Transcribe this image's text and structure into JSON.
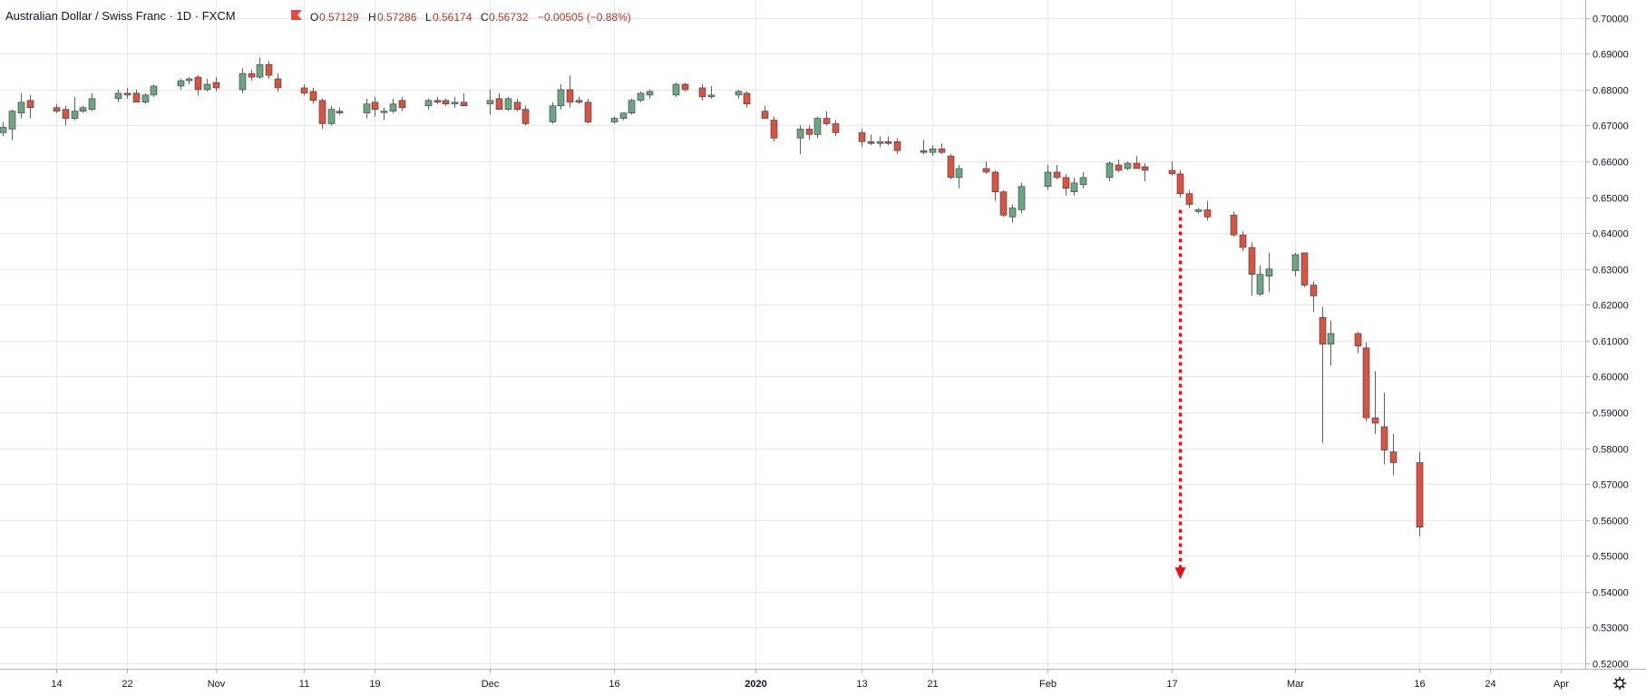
{
  "header": {
    "title": "Australian Dollar / Swiss Franc · 1D · FXCM",
    "ohlc": {
      "o_label": "O",
      "o": "0.57129",
      "h_label": "H",
      "h": "0.57286",
      "l_label": "L",
      "l": "0.56174",
      "c_label": "C",
      "c": "0.56732",
      "change": "−0.00505 (−0.88%)"
    },
    "flag_color": "#f44336"
  },
  "colors": {
    "up": "#6ba583",
    "down": "#d75442",
    "wick": "#5d606b",
    "grid": "#e8e8e8",
    "arrow": "#e31414"
  },
  "chart_data": {
    "type": "candlestick",
    "ylim": [
      0.5185,
      0.705
    ],
    "y_ticks": [
      "0.70000",
      "0.69000",
      "0.68000",
      "0.67000",
      "0.66000",
      "0.65000",
      "0.64000",
      "0.63000",
      "0.62000",
      "0.61000",
      "0.60000",
      "0.59000",
      "0.58000",
      "0.57000",
      "0.56000",
      "0.55000",
      "0.54000",
      "0.53000",
      "0.52000"
    ],
    "x_ticks": [
      {
        "label": "14",
        "date": "2019-10-14",
        "bold": false
      },
      {
        "label": "22",
        "date": "2019-10-22",
        "bold": false
      },
      {
        "label": "Nov",
        "date": "2019-11-01",
        "bold": false
      },
      {
        "label": "11",
        "date": "2019-11-11",
        "bold": false
      },
      {
        "label": "19",
        "date": "2019-11-19",
        "bold": false
      },
      {
        "label": "Dec",
        "date": "2019-12-02",
        "bold": false
      },
      {
        "label": "16",
        "date": "2019-12-16",
        "bold": false
      },
      {
        "label": "2020",
        "date": "2020-01-01",
        "bold": true
      },
      {
        "label": "13",
        "date": "2020-01-13",
        "bold": false
      },
      {
        "label": "21",
        "date": "2020-01-21",
        "bold": false
      },
      {
        "label": "Feb",
        "date": "2020-02-03",
        "bold": false
      },
      {
        "label": "17",
        "date": "2020-02-17",
        "bold": false
      },
      {
        "label": "Mar",
        "date": "2020-03-02",
        "bold": false
      },
      {
        "label": "16",
        "date": "2020-03-16",
        "bold": false
      },
      {
        "label": "24",
        "date": "2020-03-24",
        "bold": false
      },
      {
        "label": "Apr",
        "date": "2020-04-01",
        "bold": false
      }
    ],
    "candles": [
      {
        "d": "2019-10-07",
        "o": 0.669,
        "h": 0.6715,
        "l": 0.6675,
        "c": 0.668
      },
      {
        "d": "2019-10-08",
        "o": 0.668,
        "h": 0.671,
        "l": 0.667,
        "c": 0.6695
      },
      {
        "d": "2019-10-09",
        "o": 0.669,
        "h": 0.6745,
        "l": 0.666,
        "c": 0.674
      },
      {
        "d": "2019-10-10",
        "o": 0.6735,
        "h": 0.679,
        "l": 0.672,
        "c": 0.6765
      },
      {
        "d": "2019-10-11",
        "o": 0.677,
        "h": 0.6785,
        "l": 0.672,
        "c": 0.675
      },
      {
        "d": "2019-10-14",
        "o": 0.675,
        "h": 0.676,
        "l": 0.6735,
        "c": 0.674
      },
      {
        "d": "2019-10-15",
        "o": 0.6745,
        "h": 0.6755,
        "l": 0.67,
        "c": 0.672
      },
      {
        "d": "2019-10-16",
        "o": 0.672,
        "h": 0.678,
        "l": 0.6715,
        "c": 0.674
      },
      {
        "d": "2019-10-17",
        "o": 0.674,
        "h": 0.6755,
        "l": 0.6735,
        "c": 0.675
      },
      {
        "d": "2019-10-18",
        "o": 0.6745,
        "h": 0.679,
        "l": 0.674,
        "c": 0.6775
      },
      {
        "d": "2019-10-21",
        "o": 0.6775,
        "h": 0.68,
        "l": 0.6765,
        "c": 0.679
      },
      {
        "d": "2019-10-22",
        "o": 0.679,
        "h": 0.6805,
        "l": 0.6775,
        "c": 0.6785
      },
      {
        "d": "2019-10-23",
        "o": 0.679,
        "h": 0.68,
        "l": 0.6765,
        "c": 0.6765
      },
      {
        "d": "2019-10-24",
        "o": 0.6765,
        "h": 0.679,
        "l": 0.676,
        "c": 0.6785
      },
      {
        "d": "2019-10-25",
        "o": 0.6785,
        "h": 0.6815,
        "l": 0.678,
        "c": 0.681
      },
      {
        "d": "2019-10-28",
        "o": 0.681,
        "h": 0.683,
        "l": 0.68,
        "c": 0.6825
      },
      {
        "d": "2019-10-29",
        "o": 0.6825,
        "h": 0.6835,
        "l": 0.6815,
        "c": 0.683
      },
      {
        "d": "2019-10-30",
        "o": 0.6835,
        "h": 0.684,
        "l": 0.6785,
        "c": 0.68
      },
      {
        "d": "2019-10-31",
        "o": 0.68,
        "h": 0.683,
        "l": 0.6795,
        "c": 0.6815
      },
      {
        "d": "2019-11-01",
        "o": 0.682,
        "h": 0.6835,
        "l": 0.6795,
        "c": 0.6805
      },
      {
        "d": "2019-11-04",
        "o": 0.68,
        "h": 0.686,
        "l": 0.679,
        "c": 0.6845
      },
      {
        "d": "2019-11-05",
        "o": 0.6845,
        "h": 0.6855,
        "l": 0.6825,
        "c": 0.6835
      },
      {
        "d": "2019-11-06",
        "o": 0.6835,
        "h": 0.689,
        "l": 0.683,
        "c": 0.687
      },
      {
        "d": "2019-11-07",
        "o": 0.687,
        "h": 0.688,
        "l": 0.683,
        "c": 0.684
      },
      {
        "d": "2019-11-08",
        "o": 0.683,
        "h": 0.6845,
        "l": 0.6795,
        "c": 0.6805
      },
      {
        "d": "2019-11-11",
        "o": 0.6805,
        "h": 0.6815,
        "l": 0.6785,
        "c": 0.679
      },
      {
        "d": "2019-11-12",
        "o": 0.6795,
        "h": 0.6805,
        "l": 0.676,
        "c": 0.677
      },
      {
        "d": "2019-11-13",
        "o": 0.677,
        "h": 0.6775,
        "l": 0.669,
        "c": 0.6705
      },
      {
        "d": "2019-11-14",
        "o": 0.6705,
        "h": 0.6755,
        "l": 0.67,
        "c": 0.6745
      },
      {
        "d": "2019-11-15",
        "o": 0.674,
        "h": 0.675,
        "l": 0.673,
        "c": 0.6735
      },
      {
        "d": "2019-11-18",
        "o": 0.6735,
        "h": 0.6775,
        "l": 0.672,
        "c": 0.676
      },
      {
        "d": "2019-11-19",
        "o": 0.6765,
        "h": 0.678,
        "l": 0.6725,
        "c": 0.6745
      },
      {
        "d": "2019-11-20",
        "o": 0.674,
        "h": 0.675,
        "l": 0.6715,
        "c": 0.674
      },
      {
        "d": "2019-11-21",
        "o": 0.674,
        "h": 0.6775,
        "l": 0.6735,
        "c": 0.676
      },
      {
        "d": "2019-11-22",
        "o": 0.677,
        "h": 0.678,
        "l": 0.674,
        "c": 0.675
      },
      {
        "d": "2019-11-25",
        "o": 0.6755,
        "h": 0.6775,
        "l": 0.6745,
        "c": 0.677
      },
      {
        "d": "2019-11-26",
        "o": 0.677,
        "h": 0.678,
        "l": 0.676,
        "c": 0.6765
      },
      {
        "d": "2019-11-27",
        "o": 0.677,
        "h": 0.6775,
        "l": 0.6755,
        "c": 0.676
      },
      {
        "d": "2019-11-28",
        "o": 0.676,
        "h": 0.678,
        "l": 0.675,
        "c": 0.6765
      },
      {
        "d": "2019-11-29",
        "o": 0.6765,
        "h": 0.679,
        "l": 0.6755,
        "c": 0.6755
      },
      {
        "d": "2019-12-02",
        "o": 0.676,
        "h": 0.68,
        "l": 0.673,
        "c": 0.677
      },
      {
        "d": "2019-12-03",
        "o": 0.6775,
        "h": 0.679,
        "l": 0.6745,
        "c": 0.6745
      },
      {
        "d": "2019-12-04",
        "o": 0.6745,
        "h": 0.678,
        "l": 0.674,
        "c": 0.6775
      },
      {
        "d": "2019-12-05",
        "o": 0.6765,
        "h": 0.6775,
        "l": 0.674,
        "c": 0.6745
      },
      {
        "d": "2019-12-06",
        "o": 0.6745,
        "h": 0.6755,
        "l": 0.67,
        "c": 0.6705
      },
      {
        "d": "2019-12-09",
        "o": 0.671,
        "h": 0.6765,
        "l": 0.6705,
        "c": 0.6755
      },
      {
        "d": "2019-12-10",
        "o": 0.6755,
        "h": 0.6815,
        "l": 0.6745,
        "c": 0.68
      },
      {
        "d": "2019-12-11",
        "o": 0.68,
        "h": 0.684,
        "l": 0.675,
        "c": 0.6765
      },
      {
        "d": "2019-12-12",
        "o": 0.677,
        "h": 0.678,
        "l": 0.676,
        "c": 0.6765
      },
      {
        "d": "2019-12-13",
        "o": 0.6765,
        "h": 0.6775,
        "l": 0.6705,
        "c": 0.671
      },
      {
        "d": "2019-12-16",
        "o": 0.671,
        "h": 0.6725,
        "l": 0.6705,
        "c": 0.672
      },
      {
        "d": "2019-12-17",
        "o": 0.672,
        "h": 0.6735,
        "l": 0.6715,
        "c": 0.6735
      },
      {
        "d": "2019-12-18",
        "o": 0.6735,
        "h": 0.6775,
        "l": 0.673,
        "c": 0.677
      },
      {
        "d": "2019-12-19",
        "o": 0.677,
        "h": 0.6795,
        "l": 0.6765,
        "c": 0.679
      },
      {
        "d": "2019-12-20",
        "o": 0.6785,
        "h": 0.68,
        "l": 0.6775,
        "c": 0.6795
      },
      {
        "d": "2019-12-23",
        "o": 0.6785,
        "h": 0.682,
        "l": 0.678,
        "c": 0.6815
      },
      {
        "d": "2019-12-24",
        "o": 0.6815,
        "h": 0.682,
        "l": 0.6795,
        "c": 0.68
      },
      {
        "d": "2019-12-26",
        "o": 0.6805,
        "h": 0.6815,
        "l": 0.677,
        "c": 0.678
      },
      {
        "d": "2019-12-27",
        "o": 0.678,
        "h": 0.681,
        "l": 0.6775,
        "c": 0.6785
      },
      {
        "d": "2019-12-30",
        "o": 0.6785,
        "h": 0.68,
        "l": 0.6775,
        "c": 0.6795
      },
      {
        "d": "2019-12-31",
        "o": 0.679,
        "h": 0.6795,
        "l": 0.675,
        "c": 0.676
      },
      {
        "d": "2020-01-02",
        "o": 0.674,
        "h": 0.6755,
        "l": 0.672,
        "c": 0.672
      },
      {
        "d": "2020-01-03",
        "o": 0.6715,
        "h": 0.6725,
        "l": 0.6655,
        "c": 0.6665
      },
      {
        "d": "2020-01-06",
        "o": 0.6665,
        "h": 0.67,
        "l": 0.662,
        "c": 0.669
      },
      {
        "d": "2020-01-07",
        "o": 0.669,
        "h": 0.67,
        "l": 0.666,
        "c": 0.6675
      },
      {
        "d": "2020-01-08",
        "o": 0.6675,
        "h": 0.6725,
        "l": 0.6665,
        "c": 0.672
      },
      {
        "d": "2020-01-09",
        "o": 0.672,
        "h": 0.674,
        "l": 0.67,
        "c": 0.6705
      },
      {
        "d": "2020-01-10",
        "o": 0.6705,
        "h": 0.6715,
        "l": 0.667,
        "c": 0.668
      },
      {
        "d": "2020-01-13",
        "o": 0.668,
        "h": 0.669,
        "l": 0.664,
        "c": 0.6655
      },
      {
        "d": "2020-01-14",
        "o": 0.6655,
        "h": 0.6675,
        "l": 0.6645,
        "c": 0.665
      },
      {
        "d": "2020-01-15",
        "o": 0.665,
        "h": 0.667,
        "l": 0.664,
        "c": 0.6655
      },
      {
        "d": "2020-01-16",
        "o": 0.6655,
        "h": 0.667,
        "l": 0.6645,
        "c": 0.665
      },
      {
        "d": "2020-01-17",
        "o": 0.6655,
        "h": 0.6665,
        "l": 0.662,
        "c": 0.663
      },
      {
        "d": "2020-01-20",
        "o": 0.663,
        "h": 0.666,
        "l": 0.662,
        "c": 0.6625
      },
      {
        "d": "2020-01-21",
        "o": 0.6625,
        "h": 0.6645,
        "l": 0.6615,
        "c": 0.6635
      },
      {
        "d": "2020-01-22",
        "o": 0.6635,
        "h": 0.665,
        "l": 0.662,
        "c": 0.6625
      },
      {
        "d": "2020-01-23",
        "o": 0.6615,
        "h": 0.662,
        "l": 0.655,
        "c": 0.6555
      },
      {
        "d": "2020-01-24",
        "o": 0.6555,
        "h": 0.659,
        "l": 0.6525,
        "c": 0.658
      },
      {
        "d": "2020-01-27",
        "o": 0.658,
        "h": 0.66,
        "l": 0.6565,
        "c": 0.657
      },
      {
        "d": "2020-01-28",
        "o": 0.657,
        "h": 0.6575,
        "l": 0.649,
        "c": 0.6515
      },
      {
        "d": "2020-01-29",
        "o": 0.6515,
        "h": 0.652,
        "l": 0.6445,
        "c": 0.645
      },
      {
        "d": "2020-01-30",
        "o": 0.6445,
        "h": 0.648,
        "l": 0.643,
        "c": 0.647
      },
      {
        "d": "2020-01-31",
        "o": 0.6465,
        "h": 0.654,
        "l": 0.6455,
        "c": 0.653
      },
      {
        "d": "2020-02-03",
        "o": 0.653,
        "h": 0.659,
        "l": 0.652,
        "c": 0.657
      },
      {
        "d": "2020-02-04",
        "o": 0.657,
        "h": 0.659,
        "l": 0.655,
        "c": 0.6555
      },
      {
        "d": "2020-02-05",
        "o": 0.6555,
        "h": 0.6565,
        "l": 0.6505,
        "c": 0.6525
      },
      {
        "d": "2020-02-06",
        "o": 0.6515,
        "h": 0.6555,
        "l": 0.6505,
        "c": 0.654
      },
      {
        "d": "2020-02-07",
        "o": 0.6535,
        "h": 0.657,
        "l": 0.6525,
        "c": 0.6555
      },
      {
        "d": "2020-02-10",
        "o": 0.6555,
        "h": 0.66,
        "l": 0.6545,
        "c": 0.6595
      },
      {
        "d": "2020-02-11",
        "o": 0.659,
        "h": 0.6605,
        "l": 0.657,
        "c": 0.6575
      },
      {
        "d": "2020-02-12",
        "o": 0.658,
        "h": 0.66,
        "l": 0.6575,
        "c": 0.6595
      },
      {
        "d": "2020-02-13",
        "o": 0.6595,
        "h": 0.6615,
        "l": 0.658,
        "c": 0.658
      },
      {
        "d": "2020-02-14",
        "o": 0.6585,
        "h": 0.6595,
        "l": 0.6545,
        "c": 0.6575
      },
      {
        "d": "2020-02-17",
        "o": 0.6575,
        "h": 0.66,
        "l": 0.656,
        "c": 0.6565
      },
      {
        "d": "2020-02-18",
        "o": 0.6565,
        "h": 0.6575,
        "l": 0.65,
        "c": 0.651
      },
      {
        "d": "2020-02-19",
        "o": 0.651,
        "h": 0.652,
        "l": 0.647,
        "c": 0.648
      },
      {
        "d": "2020-02-20",
        "o": 0.646,
        "h": 0.647,
        "l": 0.6455,
        "c": 0.6465
      },
      {
        "d": "2020-02-21",
        "o": 0.6465,
        "h": 0.649,
        "l": 0.6435,
        "c": 0.6445
      },
      {
        "d": "2020-02-24",
        "o": 0.645,
        "h": 0.646,
        "l": 0.639,
        "c": 0.6395
      },
      {
        "d": "2020-02-25",
        "o": 0.6395,
        "h": 0.6405,
        "l": 0.635,
        "c": 0.636
      },
      {
        "d": "2020-02-26",
        "o": 0.636,
        "h": 0.6375,
        "l": 0.6225,
        "c": 0.6285
      },
      {
        "d": "2020-02-27",
        "o": 0.623,
        "h": 0.631,
        "l": 0.6225,
        "c": 0.6285
      },
      {
        "d": "2020-02-28",
        "o": 0.628,
        "h": 0.6345,
        "l": 0.6235,
        "c": 0.63
      },
      {
        "d": "2020-03-02",
        "o": 0.6295,
        "h": 0.6345,
        "l": 0.628,
        "c": 0.634
      },
      {
        "d": "2020-03-03",
        "o": 0.6345,
        "h": 0.6345,
        "l": 0.625,
        "c": 0.6255
      },
      {
        "d": "2020-03-04",
        "o": 0.6255,
        "h": 0.6265,
        "l": 0.618,
        "c": 0.6225
      },
      {
        "d": "2020-03-05",
        "o": 0.6165,
        "h": 0.6195,
        "l": 0.5815,
        "c": 0.609
      },
      {
        "d": "2020-03-06",
        "o": 0.609,
        "h": 0.6155,
        "l": 0.603,
        "c": 0.612
      },
      {
        "d": "2020-03-09",
        "o": 0.612,
        "h": 0.6125,
        "l": 0.6065,
        "c": 0.6085
      },
      {
        "d": "2020-03-10",
        "o": 0.608,
        "h": 0.6095,
        "l": 0.5875,
        "c": 0.5885
      },
      {
        "d": "2020-03-11",
        "o": 0.5885,
        "h": 0.6015,
        "l": 0.584,
        "c": 0.587
      },
      {
        "d": "2020-03-12",
        "o": 0.586,
        "h": 0.5955,
        "l": 0.5755,
        "c": 0.5795
      },
      {
        "d": "2020-03-13",
        "o": 0.579,
        "h": 0.584,
        "l": 0.5725,
        "c": 0.576
      },
      {
        "d": "2020-03-16",
        "o": 0.576,
        "h": 0.579,
        "l": 0.5555,
        "c": 0.558
      }
    ],
    "annotation": {
      "type": "dotted-arrow-down",
      "date": "2020-02-18",
      "from": 0.6465,
      "to": 0.5435
    }
  },
  "settings_icon": "gear-icon"
}
